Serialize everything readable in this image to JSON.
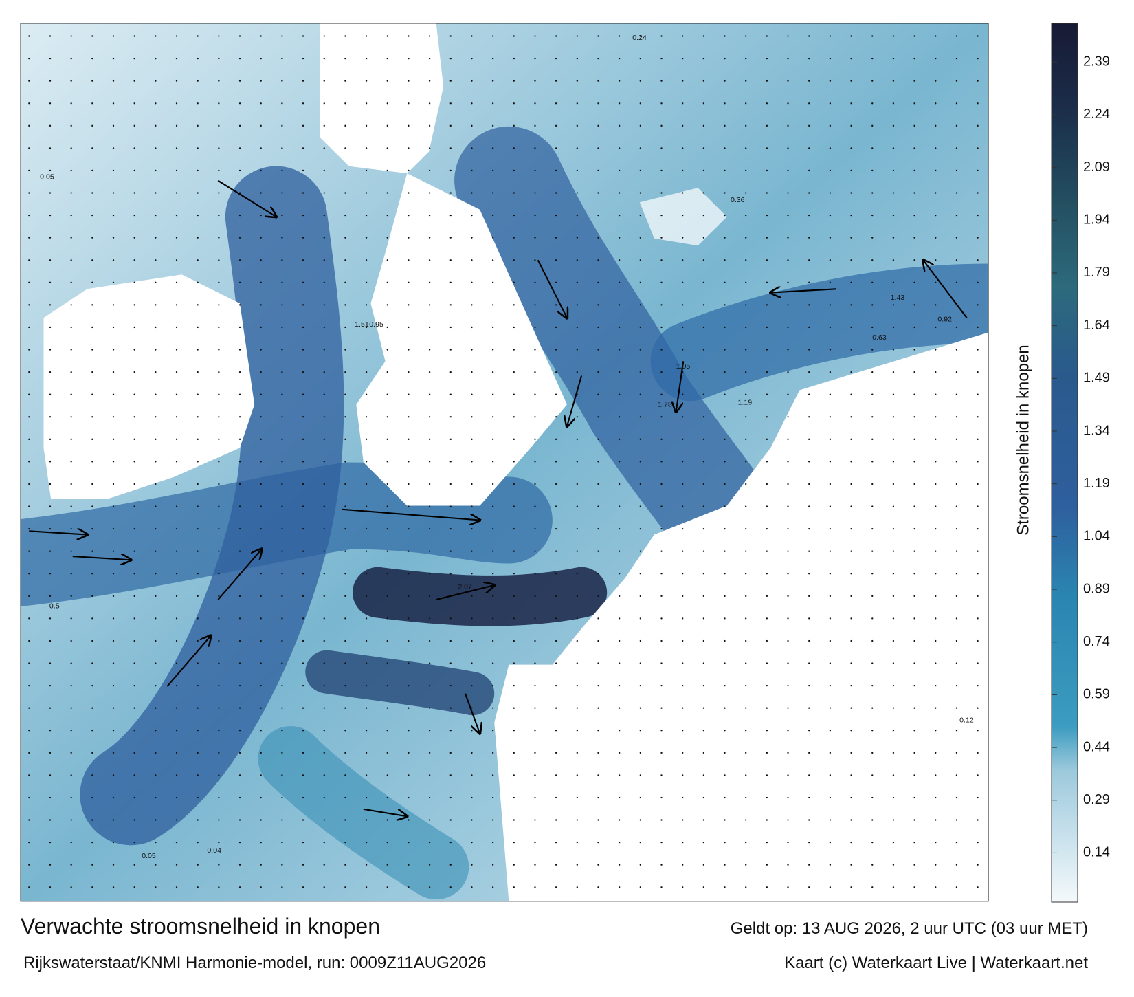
{
  "title": "Verwachte stroomsnelheid in knopen",
  "valid_time": "Geldt op: 13 AUG 2026, 2 uur UTC (03 uur MET)",
  "source": "Rijkswaterstaat/KNMI Harmonie-model, run: 0009Z11AUG2026",
  "credit": "Kaart (c) Waterkaart Live | Waterkaart.net",
  "colorbar": {
    "label": "Stroomsnelheid in knopen",
    "range": [
      0,
      2.5
    ],
    "ticks": [
      0.14,
      0.29,
      0.44,
      0.59,
      0.74,
      0.89,
      1.04,
      1.19,
      1.34,
      1.49,
      1.64,
      1.79,
      1.94,
      2.09,
      2.24,
      2.39
    ]
  },
  "current_labels": [
    "1.78",
    "2.07",
    "1.51",
    "0.95",
    "0.5",
    "0.05",
    "0.04",
    "0.05",
    "0.24",
    "1.05",
    "0.63",
    "1.19",
    "0.36",
    "0.92",
    "0.12",
    "1.43"
  ]
}
